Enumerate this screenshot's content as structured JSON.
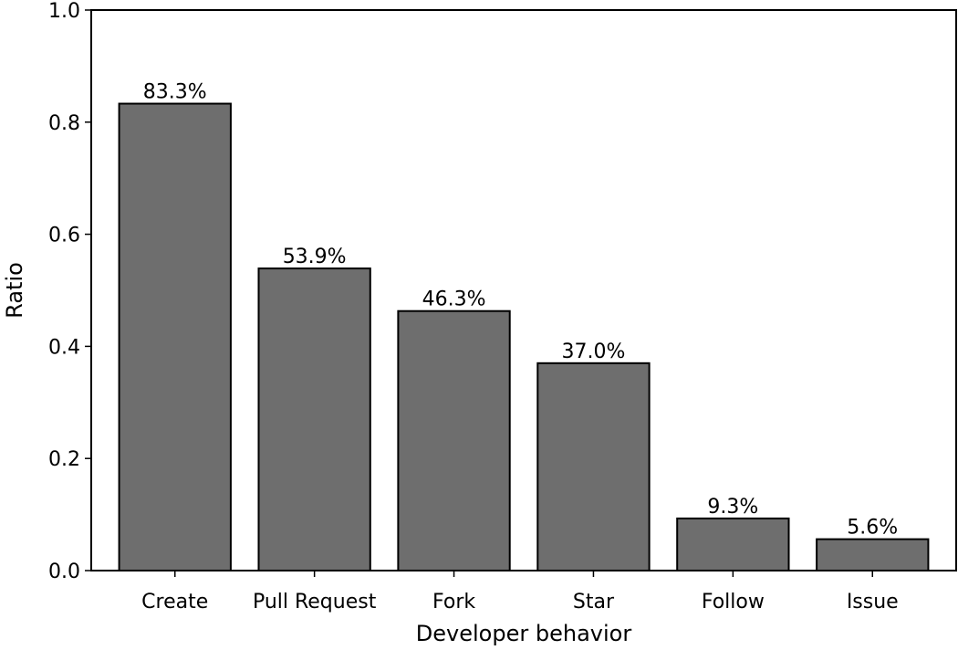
{
  "chart_data": {
    "type": "bar",
    "title": "",
    "xlabel": "Developer behavior",
    "ylabel": "Ratio",
    "categories": [
      "Create",
      "Pull Request",
      "Fork",
      "Star",
      "Follow",
      "Issue"
    ],
    "values": [
      0.833,
      0.539,
      0.463,
      0.37,
      0.093,
      0.056
    ],
    "data_labels": [
      "83.3%",
      "53.9%",
      "46.3%",
      "37.0%",
      "9.3%",
      "5.6%"
    ],
    "ylim": [
      0,
      1.0
    ],
    "yticks": [
      0.0,
      0.2,
      0.4,
      0.6,
      0.8,
      1.0
    ],
    "ytick_labels": [
      "0.0",
      "0.2",
      "0.4",
      "0.6",
      "0.8",
      "1.0"
    ],
    "grid": false,
    "legend": "none",
    "colors": {
      "bar": "#6e6e6e",
      "edge": "#000000"
    }
  }
}
